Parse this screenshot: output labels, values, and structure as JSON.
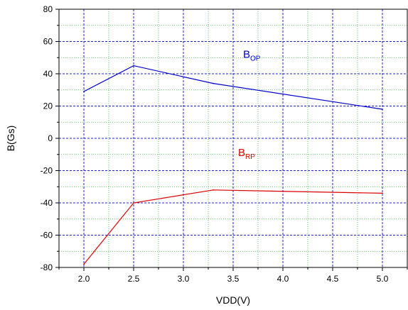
{
  "chart_data": {
    "type": "line",
    "xlabel": "VDD(V)",
    "ylabel": "B(Gs)",
    "xlim": [
      1.75,
      5.25
    ],
    "ylim": [
      -80,
      80
    ],
    "xticks": [
      2.0,
      2.5,
      3.0,
      3.5,
      4.0,
      4.5,
      5.0
    ],
    "xtick_labels": [
      "2.0",
      "2.5",
      "3.0",
      "3.5",
      "4.0",
      "4.5",
      "5.0"
    ],
    "yticks": [
      -80,
      -60,
      -40,
      -20,
      0,
      20,
      40,
      60,
      80
    ],
    "ytick_labels": [
      "-80",
      "-60",
      "-40",
      "-20",
      "0",
      "20",
      "40",
      "60",
      "80"
    ],
    "grid": {
      "major": true,
      "minor": true,
      "major_color": "#2222cc",
      "minor_color": "#33bb33"
    },
    "series": [
      {
        "name": "BOP",
        "color": "#0000cc",
        "x": [
          2.0,
          2.5,
          3.3,
          5.0
        ],
        "y": [
          29,
          45,
          34,
          18
        ]
      },
      {
        "name": "BRP",
        "color": "#dd0000",
        "x": [
          2.0,
          2.5,
          3.3,
          5.0
        ],
        "y": [
          -78,
          -40,
          -32,
          -34
        ]
      }
    ],
    "annotations": [
      {
        "main": "B",
        "sub": "OP",
        "color": "#0000cc",
        "x": 3.6,
        "y": 50
      },
      {
        "main": "B",
        "sub": "RP",
        "color": "#dd0000",
        "x": 3.55,
        "y": -11
      }
    ]
  }
}
